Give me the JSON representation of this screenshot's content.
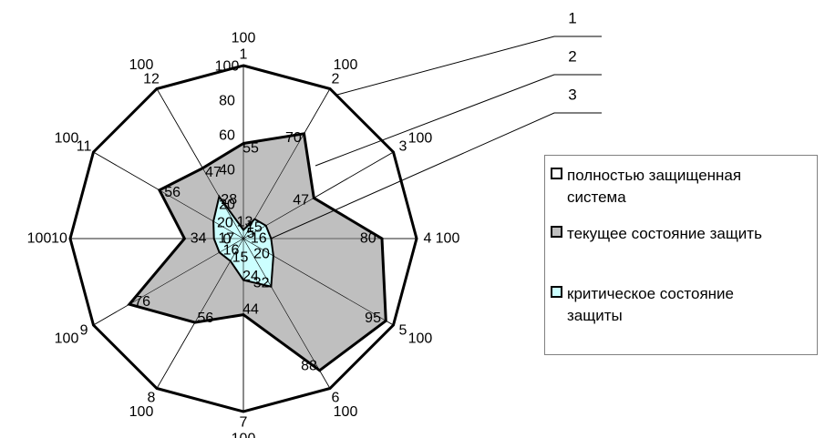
{
  "chart_data": {
    "type": "radar",
    "axes": [
      "1",
      "2",
      "3",
      "4",
      "5",
      "6",
      "7",
      "8",
      "9",
      "10",
      "11",
      "12"
    ],
    "scale_ticks": [
      "100",
      "80",
      "60",
      "40",
      "20",
      "0"
    ],
    "rlim": [
      0,
      100
    ],
    "series": [
      {
        "name": "полностью защищенная система",
        "values": [
          100,
          100,
          100,
          100,
          100,
          100,
          100,
          100,
          100,
          100,
          100,
          100
        ],
        "color": "#ffffff"
      },
      {
        "name": "текущее состояние защиты",
        "values": [
          55,
          70,
          47,
          80,
          95,
          88,
          44,
          56,
          76,
          34,
          56,
          47
        ],
        "color": "#bfbfbf"
      },
      {
        "name": "критическое состояние защиты",
        "values": [
          5,
          13,
          15,
          16,
          20,
          32,
          24,
          15,
          16,
          17,
          20,
          28
        ],
        "color": "#ccffff"
      }
    ],
    "legend_position": "right",
    "callouts": [
      "1",
      "2",
      "3"
    ]
  },
  "legend": {
    "items": [
      {
        "label_line1": "полностью защищенная",
        "label_line2": "система",
        "color": "#ffffff"
      },
      {
        "label_line1": "текущее состояние защить",
        "label_line2": "",
        "color": "#bfbfbf"
      },
      {
        "label_line1": "критическое состояние",
        "label_line2": "защиты",
        "color": "#ccffff"
      }
    ]
  }
}
